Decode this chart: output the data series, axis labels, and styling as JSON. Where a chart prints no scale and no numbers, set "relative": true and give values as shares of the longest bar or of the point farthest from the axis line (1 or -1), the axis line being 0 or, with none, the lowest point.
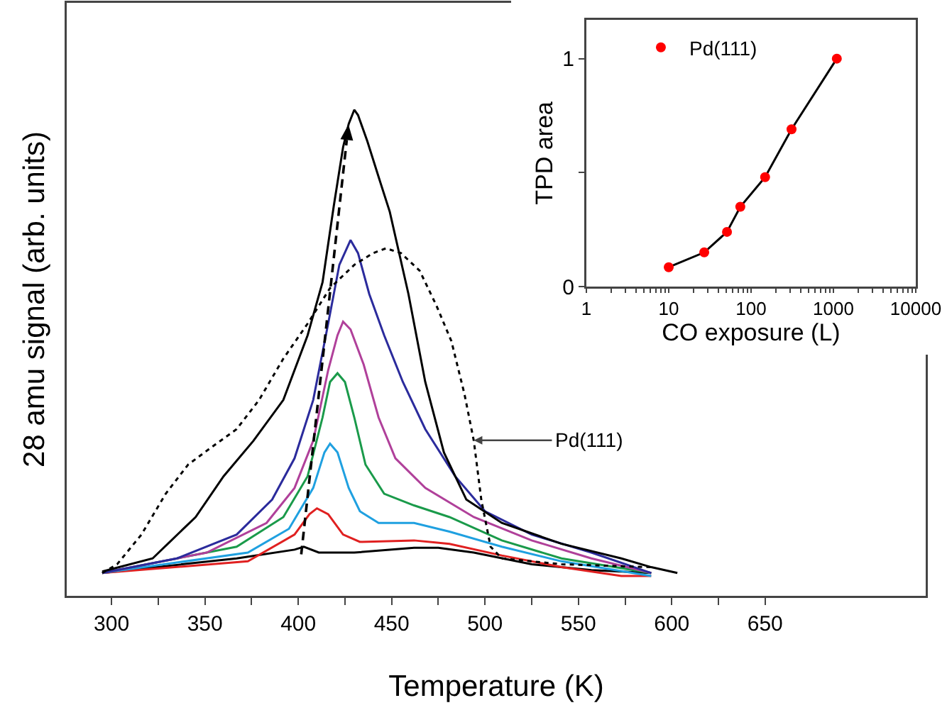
{
  "chart_data": [
    {
      "type": "line",
      "relative": true,
      "xlabel": "Temperature (K)",
      "ylabel": "28 amu signal (arb. units)",
      "xlim": [
        276,
        736
      ],
      "xticks": [
        300,
        {
          "value": 325,
          "label": null
        },
        350,
        {
          "value": 375,
          "label": null
        },
        400,
        {
          "value": 425,
          "label": null
        },
        450,
        {
          "value": 475,
          "label": null
        },
        500,
        {
          "value": 525,
          "label": null
        },
        550,
        {
          "value": 575,
          "label": null
        },
        600,
        {
          "value": 625,
          "label": null
        },
        650
      ],
      "grid": false,
      "legend": false,
      "annotations": [
        {
          "text": "Pd(111)",
          "x": 494,
          "y": 0.32
        }
      ],
      "series": [
        {
          "color": "#000000",
          "line_style": "solid",
          "x": [
            295,
            367,
            398,
            403,
            411,
            430,
            462,
            475,
            494,
            525,
            557,
            589
          ],
          "values": [
            0.047,
            0.077,
            0.095,
            0.101,
            0.089,
            0.089,
            0.099,
            0.099,
            0.089,
            0.065,
            0.053,
            0.047
          ]
        },
        {
          "color": "#e02020",
          "line_style": "solid",
          "x": [
            295,
            373,
            398,
            406,
            410,
            416,
            424,
            433,
            462,
            481,
            509,
            541,
            573,
            589
          ],
          "values": [
            0.047,
            0.071,
            0.126,
            0.168,
            0.18,
            0.168,
            0.126,
            0.111,
            0.114,
            0.107,
            0.083,
            0.059,
            0.041,
            0.041
          ]
        },
        {
          "color": "#1fa0e0",
          "line_style": "solid",
          "x": [
            295,
            373,
            395,
            408,
            414,
            417,
            421,
            427,
            433,
            443,
            462,
            481,
            509,
            541,
            589
          ],
          "values": [
            0.047,
            0.089,
            0.138,
            0.222,
            0.295,
            0.313,
            0.295,
            0.222,
            0.174,
            0.15,
            0.15,
            0.132,
            0.101,
            0.071,
            0.041
          ]
        },
        {
          "color": "#1a9a4a",
          "line_style": "solid",
          "x": [
            295,
            367,
            392,
            405,
            413,
            417,
            421,
            425,
            430,
            436,
            446,
            462,
            481,
            509,
            541,
            589
          ],
          "values": [
            0.047,
            0.101,
            0.162,
            0.246,
            0.367,
            0.44,
            0.458,
            0.44,
            0.367,
            0.27,
            0.21,
            0.186,
            0.162,
            0.114,
            0.077,
            0.047
          ]
        },
        {
          "color": "#b0409a",
          "line_style": "solid",
          "x": [
            295,
            351,
            383,
            398,
            408,
            416,
            421,
            424,
            428,
            435,
            443,
            452,
            468,
            494,
            525,
            557,
            589
          ],
          "values": [
            0.047,
            0.089,
            0.15,
            0.222,
            0.319,
            0.464,
            0.536,
            0.564,
            0.548,
            0.476,
            0.367,
            0.283,
            0.222,
            0.162,
            0.114,
            0.077,
            0.047
          ]
        },
        {
          "color": "#2b2b9c",
          "line_style": "solid",
          "x": [
            295,
            335,
            367,
            386,
            398,
            408,
            416,
            422,
            428,
            432,
            438,
            446,
            456,
            468,
            484,
            500,
            525,
            557,
            589
          ],
          "values": [
            0.047,
            0.077,
            0.126,
            0.198,
            0.283,
            0.403,
            0.56,
            0.681,
            0.732,
            0.705,
            0.621,
            0.536,
            0.44,
            0.343,
            0.246,
            0.174,
            0.126,
            0.089,
            0.047
          ]
        },
        {
          "color": "#000000",
          "line_style": "solid",
          "x": [
            295,
            322,
            345,
            360,
            376,
            392,
            405,
            413,
            419,
            424,
            427,
            430,
            432,
            437,
            443,
            449,
            459,
            468,
            478,
            490,
            509,
            541,
            573,
            589,
            603
          ],
          "values": [
            0.05,
            0.077,
            0.162,
            0.246,
            0.319,
            0.403,
            0.536,
            0.645,
            0.802,
            0.923,
            0.971,
            1.0,
            0.989,
            0.935,
            0.862,
            0.79,
            0.621,
            0.44,
            0.295,
            0.198,
            0.15,
            0.107,
            0.077,
            0.059,
            0.047
          ]
        },
        {
          "color": "#000000",
          "line_style": "dotted",
          "x": [
            295,
            303,
            316,
            329,
            341,
            354,
            367,
            379,
            392,
            405,
            417,
            430,
            440,
            447,
            455,
            465,
            474,
            482,
            489,
            494,
            498,
            503,
            509,
            541,
            589
          ],
          "values": [
            0.047,
            0.065,
            0.126,
            0.21,
            0.27,
            0.307,
            0.343,
            0.403,
            0.488,
            0.56,
            0.633,
            0.681,
            0.705,
            0.715,
            0.705,
            0.669,
            0.597,
            0.524,
            0.415,
            0.319,
            0.198,
            0.101,
            0.077,
            0.065,
            0.059
          ]
        }
      ]
    },
    {
      "type": "line",
      "xlabel": "CO exposure (L)",
      "ylabel": "TPD area",
      "log": "x",
      "xlim": [
        1,
        10000
      ],
      "ylim": [
        0,
        1.17
      ],
      "xticks": [
        1,
        {
          "value": 2,
          "label": null
        },
        {
          "value": 3,
          "label": null
        },
        {
          "value": 4,
          "label": null
        },
        {
          "value": 5,
          "label": null
        },
        {
          "value": 6,
          "label": null
        },
        {
          "value": 7,
          "label": null
        },
        {
          "value": 8,
          "label": null
        },
        {
          "value": 9,
          "label": null
        },
        10,
        {
          "value": 20,
          "label": null
        },
        {
          "value": 30,
          "label": null
        },
        {
          "value": 40,
          "label": null
        },
        {
          "value": 50,
          "label": null
        },
        {
          "value": 60,
          "label": null
        },
        {
          "value": 70,
          "label": null
        },
        {
          "value": 80,
          "label": null
        },
        {
          "value": 90,
          "label": null
        },
        100,
        {
          "value": 200,
          "label": null
        },
        {
          "value": 300,
          "label": null
        },
        {
          "value": 400,
          "label": null
        },
        {
          "value": 500,
          "label": null
        },
        {
          "value": 600,
          "label": null
        },
        {
          "value": 700,
          "label": null
        },
        {
          "value": 800,
          "label": null
        },
        {
          "value": 900,
          "label": null
        },
        1000,
        {
          "value": 2000,
          "label": null
        },
        {
          "value": 3000,
          "label": null
        },
        {
          "value": 4000,
          "label": null
        },
        {
          "value": 5000,
          "label": null
        },
        {
          "value": 6000,
          "label": null
        },
        {
          "value": 7000,
          "label": null
        },
        {
          "value": 8000,
          "label": null
        },
        {
          "value": 9000,
          "label": null
        },
        10000
      ],
      "yticks": [
        0,
        {
          "value": 0.5,
          "label": null
        },
        1
      ],
      "grid": false,
      "legend": "top left",
      "x": [
        10,
        27,
        51,
        74,
        148,
        310,
        1100
      ],
      "series": [
        {
          "color": "#000000",
          "values": [
            0.085,
            0.15,
            0.24,
            0.35,
            0.48,
            0.69,
            1.0
          ]
        },
        {
          "type": "scatter",
          "name": "Pd(111)",
          "color": "#ff0000",
          "marker": "circle",
          "values": [
            0.085,
            0.15,
            0.24,
            0.35,
            0.48,
            0.69,
            1.0
          ]
        }
      ]
    }
  ]
}
